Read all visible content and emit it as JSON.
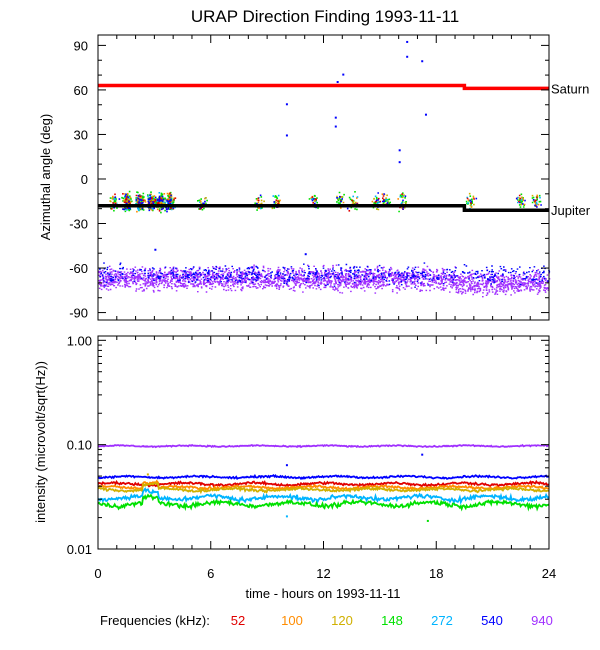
{
  "chart_data": [
    {
      "type": "scatter",
      "panel": "azimuth",
      "title": "URAP Direction Finding  1993-11-11",
      "xlabel": "",
      "ylabel": "Azimuthal angle (deg)",
      "xlim": [
        0,
        24
      ],
      "ylim": [
        -95,
        97
      ],
      "xticks": [
        0,
        6,
        12,
        18,
        24
      ],
      "yticks": [
        90,
        60,
        30,
        0,
        -30,
        -60,
        -90
      ],
      "ytick_labels": [
        "90",
        "60",
        "30",
        "0",
        "-30",
        "-60",
        "-90"
      ],
      "reference_lines": [
        {
          "name": "Saturn",
          "color": "#ff0000",
          "segments": [
            {
              "x": [
                0,
                19.5
              ],
              "y": 63
            },
            {
              "x": [
                19.5,
                24
              ],
              "y": 61
            }
          ]
        },
        {
          "name": "Jupiter",
          "color": "#000000",
          "segments": [
            {
              "x": [
                0,
                19.5
              ],
              "y": -18
            },
            {
              "x": [
                19.5,
                24
              ],
              "y": -21
            }
          ]
        }
      ],
      "scatter_groups": [
        {
          "name": "940 kHz emission band",
          "color": "#a030ff",
          "x": [
            0,
            24
          ],
          "y_center": -67,
          "y_spread": 6
        },
        {
          "name": "540 kHz emission band",
          "color": "#0000ff",
          "x": [
            0,
            24
          ],
          "y_center": -64,
          "y_spread": 5
        },
        {
          "name": "Jupiter-direction points",
          "color": "#00e000",
          "x_centers": [
            0.8,
            1.5,
            2.2,
            2.8,
            3.3,
            3.8,
            5.5,
            8.5,
            9.5,
            11.5,
            12.8,
            13.5,
            14.8,
            15.3,
            16.2,
            19.8,
            22.5,
            23.3
          ],
          "y_center": -15,
          "y_spread": 8
        },
        {
          "name": "outliers",
          "color": "#0000ff",
          "points": [
            [
              10,
              51
            ],
            [
              10,
              30
            ],
            [
              12.6,
              42
            ],
            [
              12.6,
              36
            ],
            [
              12.7,
              66
            ],
            [
              13,
              71
            ],
            [
              16,
              12
            ],
            [
              16,
              20
            ],
            [
              16.4,
              93
            ],
            [
              16.4,
              83
            ],
            [
              17.2,
              80
            ],
            [
              17.4,
              44
            ],
            [
              3,
              -47
            ],
            [
              11,
              -50
            ]
          ]
        }
      ]
    },
    {
      "type": "line",
      "panel": "intensity",
      "title": "",
      "xlabel": "time - hours on 1993-11-11",
      "ylabel": "intensity (microvolt/sqrt(Hz))",
      "yscale": "log",
      "xlim": [
        0,
        24
      ],
      "ylim": [
        0.01,
        1.1
      ],
      "xticks": [
        0,
        6,
        12,
        18,
        24
      ],
      "xtick_labels": [
        "0",
        "6",
        "12",
        "18",
        "24"
      ],
      "yticks": [
        1.0,
        0.1,
        0.01
      ],
      "ytick_labels": [
        "1.00",
        "0.10",
        "0.01"
      ],
      "series": [
        {
          "name": "52",
          "color": "#e00000",
          "level": 0.042,
          "noise": 0.04
        },
        {
          "name": "100",
          "color": "#ff8c00",
          "level": 0.039,
          "noise": 0.04
        },
        {
          "name": "120",
          "color": "#d0b000",
          "level": 0.037,
          "noise": 0.04
        },
        {
          "name": "148",
          "color": "#00e000",
          "level": 0.027,
          "noise": 0.07
        },
        {
          "name": "272",
          "color": "#00b4ff",
          "level": 0.031,
          "noise": 0.07
        },
        {
          "name": "540",
          "color": "#0000ff",
          "level": 0.049,
          "noise": 0.03
        },
        {
          "name": "940",
          "color": "#a030ff",
          "level": 0.097,
          "noise": 0.02
        }
      ]
    }
  ],
  "legend": {
    "label": "Frequencies (kHz):",
    "items": [
      {
        "text": "52",
        "color": "#e00000"
      },
      {
        "text": "100",
        "color": "#ff8c00"
      },
      {
        "text": "120",
        "color": "#d0b000"
      },
      {
        "text": "148",
        "color": "#00e000"
      },
      {
        "text": "272",
        "color": "#00b4ff"
      },
      {
        "text": "540",
        "color": "#0000ff"
      },
      {
        "text": "940",
        "color": "#a030ff"
      }
    ]
  }
}
